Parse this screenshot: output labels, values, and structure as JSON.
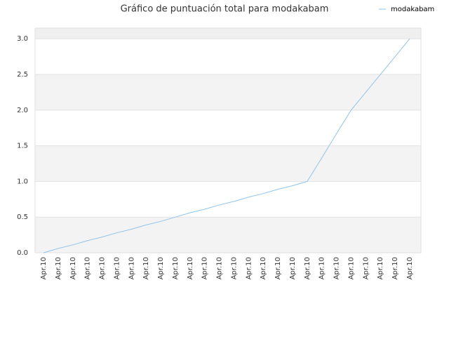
{
  "chart_data": {
    "type": "line",
    "title": "Gráfico de puntuación total para modakabam",
    "categories": [
      "Apr.10",
      "Apr.10",
      "Apr.10",
      "Apr.10",
      "Apr.10",
      "Apr.10",
      "Apr.10",
      "Apr.10",
      "Apr.10",
      "Apr.10",
      "Apr.10",
      "Apr.10",
      "Apr.10",
      "Apr.10",
      "Apr.10",
      "Apr.10",
      "Apr.10",
      "Apr.10",
      "Apr.10",
      "Apr.10",
      "Apr.10",
      "Apr.10",
      "Apr.10",
      "Apr.10",
      "Apr.10",
      "Apr.10"
    ],
    "series": [
      {
        "name": "modakabam",
        "color": "#8ec5f0",
        "values": [
          0,
          0.06,
          0.11,
          0.17,
          0.22,
          0.28,
          0.33,
          0.39,
          0.44,
          0.5,
          0.56,
          0.61,
          0.67,
          0.72,
          0.78,
          0.83,
          0.89,
          0.94,
          1.0,
          1.33,
          1.67,
          2.0,
          2.25,
          2.5,
          2.75,
          3.0
        ]
      }
    ],
    "ylim": [
      0,
      3.15
    ],
    "yticks": [
      {
        "value": 0,
        "label": "0.0"
      },
      {
        "value": 0.5,
        "label": "0.5"
      },
      {
        "value": 1,
        "label": "1.0"
      },
      {
        "value": 1.5,
        "label": "1.5"
      },
      {
        "value": 2,
        "label": "2.0"
      },
      {
        "value": 2.5,
        "label": "2.5"
      },
      {
        "value": 3,
        "label": "3.0"
      }
    ],
    "grid": true,
    "legend": "top-right"
  }
}
